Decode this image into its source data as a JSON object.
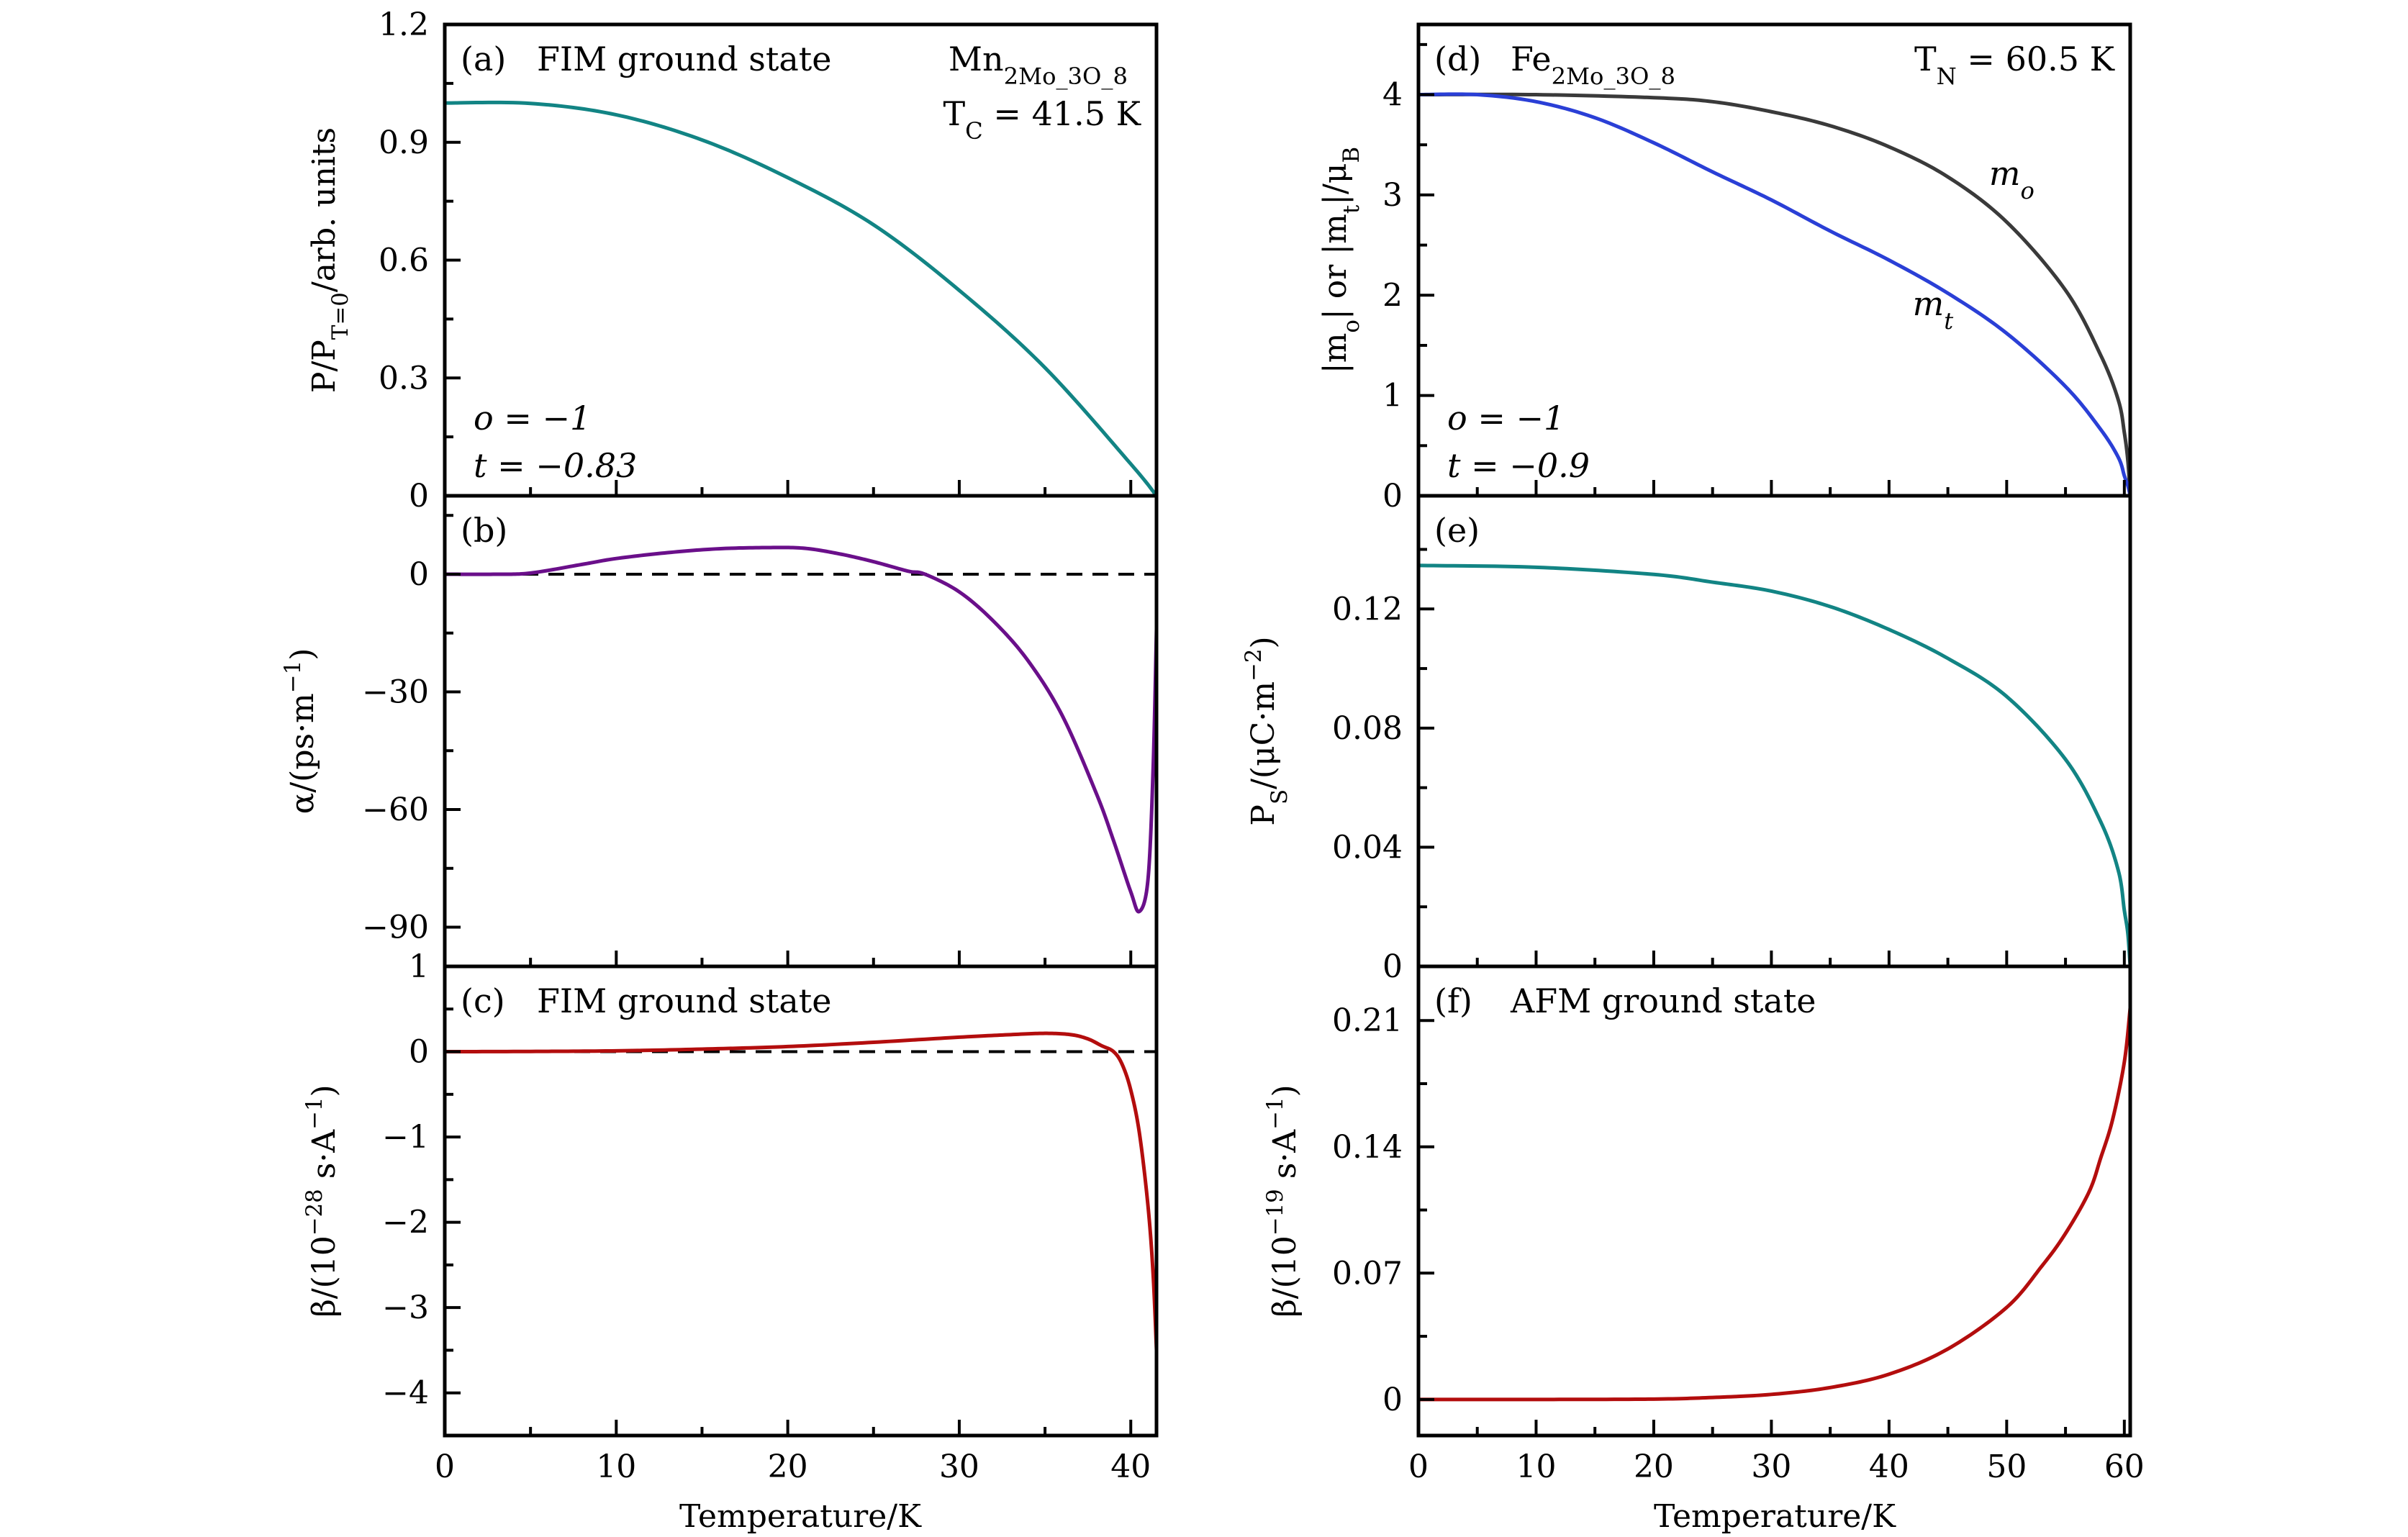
{
  "figure": {
    "xlabel_left": "Temperature/K",
    "xlabel_right": "Temperature/K"
  },
  "chart_data": [
    {
      "id": "a",
      "type": "line",
      "panel_label": "(a)",
      "annotations": [
        {
          "text": "(a)  FIM ground state",
          "pos": "top-left"
        },
        {
          "text_main": "Mn",
          "formula": [
            [
              "Mn",
              ""
            ],
            [
              "2",
              "sub"
            ],
            [
              "Mo",
              ""
            ],
            [
              "3",
              "sub"
            ],
            [
              "O",
              ""
            ],
            [
              "8",
              "sub"
            ]
          ],
          "pos": "top-right-1"
        },
        {
          "label": "T_C = 41.5 K",
          "pos": "top-right-2"
        },
        {
          "label": "o = −1",
          "pos": "bottom-left-1"
        },
        {
          "label": "t = −0.83",
          "pos": "bottom-left-2"
        }
      ],
      "title_text": "FIM ground state",
      "compound": "Mn2Mo3O8",
      "critical_temp": "T_C = 41.5 K",
      "params": [
        "o = −1",
        "t = −0.83"
      ],
      "ylabel": "P/P_{T=0}/arb. units",
      "xlabel": "",
      "xlim": [
        0,
        41.5
      ],
      "ylim": [
        0,
        1.2
      ],
      "yticks": [
        0,
        0.3,
        0.6,
        0.9,
        1.2
      ],
      "ytick_labels": [
        "0",
        "0.3",
        "0.6",
        "0.9",
        "1.2"
      ],
      "yminor_step": 0.15,
      "xticks": [
        0,
        10,
        20,
        30,
        40
      ],
      "xminor_step": 5,
      "show_xticklabels": false,
      "zero_line": false,
      "series": [
        {
          "name": "P/P_T=0",
          "color": "#128484",
          "x": [
            0,
            5,
            10,
            15,
            20,
            25,
            30,
            35,
            40,
            41.5
          ],
          "y": [
            1.0,
            0.999,
            0.97,
            0.906,
            0.81,
            0.69,
            0.523,
            0.326,
            0.081,
            0.0
          ]
        }
      ]
    },
    {
      "id": "b",
      "type": "line",
      "panel_label": "(b)",
      "ylabel": "α/(ps·m^−1)",
      "xlim": [
        0,
        41.5
      ],
      "ylim": [
        -100,
        20
      ],
      "yticks": [
        -90,
        -60,
        -30,
        0
      ],
      "ytick_labels": [
        "−90",
        "−60",
        "−30",
        "0"
      ],
      "yminor_step": 15,
      "xticks": [
        0,
        10,
        20,
        30,
        40
      ],
      "xminor_step": 5,
      "show_xticklabels": false,
      "zero_line": true,
      "series": [
        {
          "name": "alpha",
          "color": "#6a0f8a",
          "x": [
            0,
            3,
            5,
            8,
            10,
            13,
            16,
            19,
            21,
            23,
            25,
            27,
            28,
            30,
            32,
            34,
            36,
            38,
            39,
            40,
            40.5,
            41,
            41.3,
            41.5
          ],
          "y": [
            0,
            0,
            0.3,
            2.5,
            4.0,
            5.5,
            6.5,
            6.8,
            6.6,
            5.2,
            3.2,
            0.8,
            0,
            -4.5,
            -12,
            -22,
            -36,
            -56,
            -68,
            -81,
            -86,
            -78,
            -50,
            -14
          ]
        }
      ]
    },
    {
      "id": "c",
      "type": "line",
      "panel_label": "(c)",
      "title_text": "FIM ground state",
      "ylabel": "β/(10^−28 s·A^−1)",
      "xlabel": "Temperature/K",
      "xlim": [
        0,
        41.5
      ],
      "ylim": [
        -4.5,
        1
      ],
      "yticks": [
        -4,
        -3,
        -2,
        -1,
        0,
        1
      ],
      "ytick_labels": [
        "−4",
        "−3",
        "−2",
        "−1",
        "0",
        "1"
      ],
      "yminor_step": 0.5,
      "xticks": [
        0,
        10,
        20,
        30,
        40
      ],
      "xtick_labels": [
        "0",
        "10",
        "20",
        "30",
        "40"
      ],
      "xminor_step": 5,
      "show_xticklabels": true,
      "zero_line": true,
      "series": [
        {
          "name": "beta_FIM",
          "color": "#b30d0d",
          "x": [
            0,
            5,
            10,
            15,
            20,
            25,
            30,
            33,
            35,
            36.5,
            37.5,
            38.3,
            39,
            39.5,
            40,
            40.5,
            41,
            41.3,
            41.5
          ],
          "y": [
            0,
            0.003,
            0.01,
            0.03,
            0.06,
            0.11,
            0.17,
            0.2,
            0.215,
            0.2,
            0.15,
            0.07,
            0,
            -0.15,
            -0.45,
            -0.95,
            -1.8,
            -2.6,
            -3.5
          ]
        }
      ]
    },
    {
      "id": "d",
      "type": "line",
      "panel_label": "(d)",
      "compound": "Fe2Mo3O8",
      "critical_temp": "T_N = 60.5 K",
      "params": [
        "o = −1",
        "t = −0.9"
      ],
      "ylabel": "|m_o| or |m_t|/μ_B",
      "xlim": [
        0,
        60.5
      ],
      "ylim": [
        0,
        4.7
      ],
      "yticks": [
        0,
        1,
        2,
        3,
        4
      ],
      "ytick_labels": [
        "0",
        "1",
        "2",
        "3",
        "4"
      ],
      "yminor_step": 0.5,
      "xticks": [
        0,
        10,
        20,
        30,
        40,
        50,
        60
      ],
      "xminor_step": 5,
      "show_xticklabels": false,
      "zero_line": false,
      "series": [
        {
          "name": "m_o",
          "label": "m_o",
          "color": "#3a3a3a",
          "x": [
            0,
            10,
            20,
            25,
            30,
            35,
            40,
            45,
            50,
            55,
            58,
            59.5,
            60,
            60.3,
            60.5
          ],
          "y": [
            4.0,
            4.0,
            3.97,
            3.93,
            3.83,
            3.69,
            3.48,
            3.18,
            2.73,
            2.05,
            1.4,
            0.95,
            0.63,
            0.35,
            0.0
          ]
        },
        {
          "name": "m_t",
          "label": "m_t",
          "color": "#2a3fd6",
          "x": [
            0,
            5,
            10,
            15,
            20,
            25,
            30,
            35,
            40,
            45,
            50,
            55,
            58,
            59.5,
            60,
            60.3,
            60.5
          ],
          "y": [
            4.0,
            4.0,
            3.93,
            3.77,
            3.52,
            3.23,
            2.95,
            2.64,
            2.35,
            2.02,
            1.62,
            1.09,
            0.66,
            0.38,
            0.2,
            0.1,
            0.0
          ]
        }
      ],
      "curve_labels": [
        {
          "text": "m_o",
          "x": 48.5,
          "y": 3.1
        },
        {
          "text": "m_t",
          "x": 42,
          "y": 1.8
        }
      ]
    },
    {
      "id": "e",
      "type": "line",
      "panel_label": "(e)",
      "ylabel": "P_S/(μC·m^−2)",
      "xlim": [
        0,
        60.5
      ],
      "ylim": [
        0,
        0.158
      ],
      "yticks": [
        0,
        0.04,
        0.08,
        0.12
      ],
      "ytick_labels": [
        "0",
        "0.04",
        "0.08",
        "0.12"
      ],
      "yminor_step": 0.02,
      "xticks": [
        0,
        10,
        20,
        30,
        40,
        50,
        60
      ],
      "xminor_step": 5,
      "show_xticklabels": false,
      "zero_line": false,
      "series": [
        {
          "name": "P_S",
          "color": "#128484",
          "x": [
            0,
            10,
            20,
            25,
            30,
            35,
            40,
            45,
            50,
            55,
            58,
            59.5,
            60,
            60.3,
            60.5
          ],
          "y": [
            0.1346,
            0.134,
            0.1316,
            0.129,
            0.126,
            0.1208,
            0.1131,
            0.1034,
            0.0906,
            0.0695,
            0.0485,
            0.032,
            0.0188,
            0.011,
            0.0
          ]
        }
      ]
    },
    {
      "id": "f",
      "type": "line",
      "panel_label": "(f)",
      "title_text": "AFM ground state",
      "ylabel": "β/(10^−19 s·A^−1)",
      "xlabel": "Temperature/K",
      "xlim": [
        0,
        60.5
      ],
      "ylim": [
        -0.02,
        0.24
      ],
      "yticks": [
        0,
        0.07,
        0.14,
        0.21
      ],
      "ytick_labels": [
        "0",
        "0.07",
        "0.14",
        "0.21"
      ],
      "yminor_step": 0.035,
      "xticks": [
        0,
        10,
        20,
        30,
        40,
        50,
        60
      ],
      "xtick_labels": [
        "0",
        "10",
        "20",
        "30",
        "40",
        "50",
        "60"
      ],
      "xminor_step": 5,
      "show_xticklabels": true,
      "zero_line": false,
      "series": [
        {
          "name": "beta_AFM",
          "color": "#b30d0d",
          "x": [
            0,
            10,
            20,
            25,
            30,
            35,
            40,
            45,
            50,
            53,
            55,
            57,
            58,
            59,
            60,
            60.5
          ],
          "y": [
            0,
            0,
            0.0002,
            0.0011,
            0.0028,
            0.0066,
            0.014,
            0.028,
            0.051,
            0.074,
            0.092,
            0.115,
            0.134,
            0.155,
            0.187,
            0.217
          ]
        }
      ]
    }
  ]
}
